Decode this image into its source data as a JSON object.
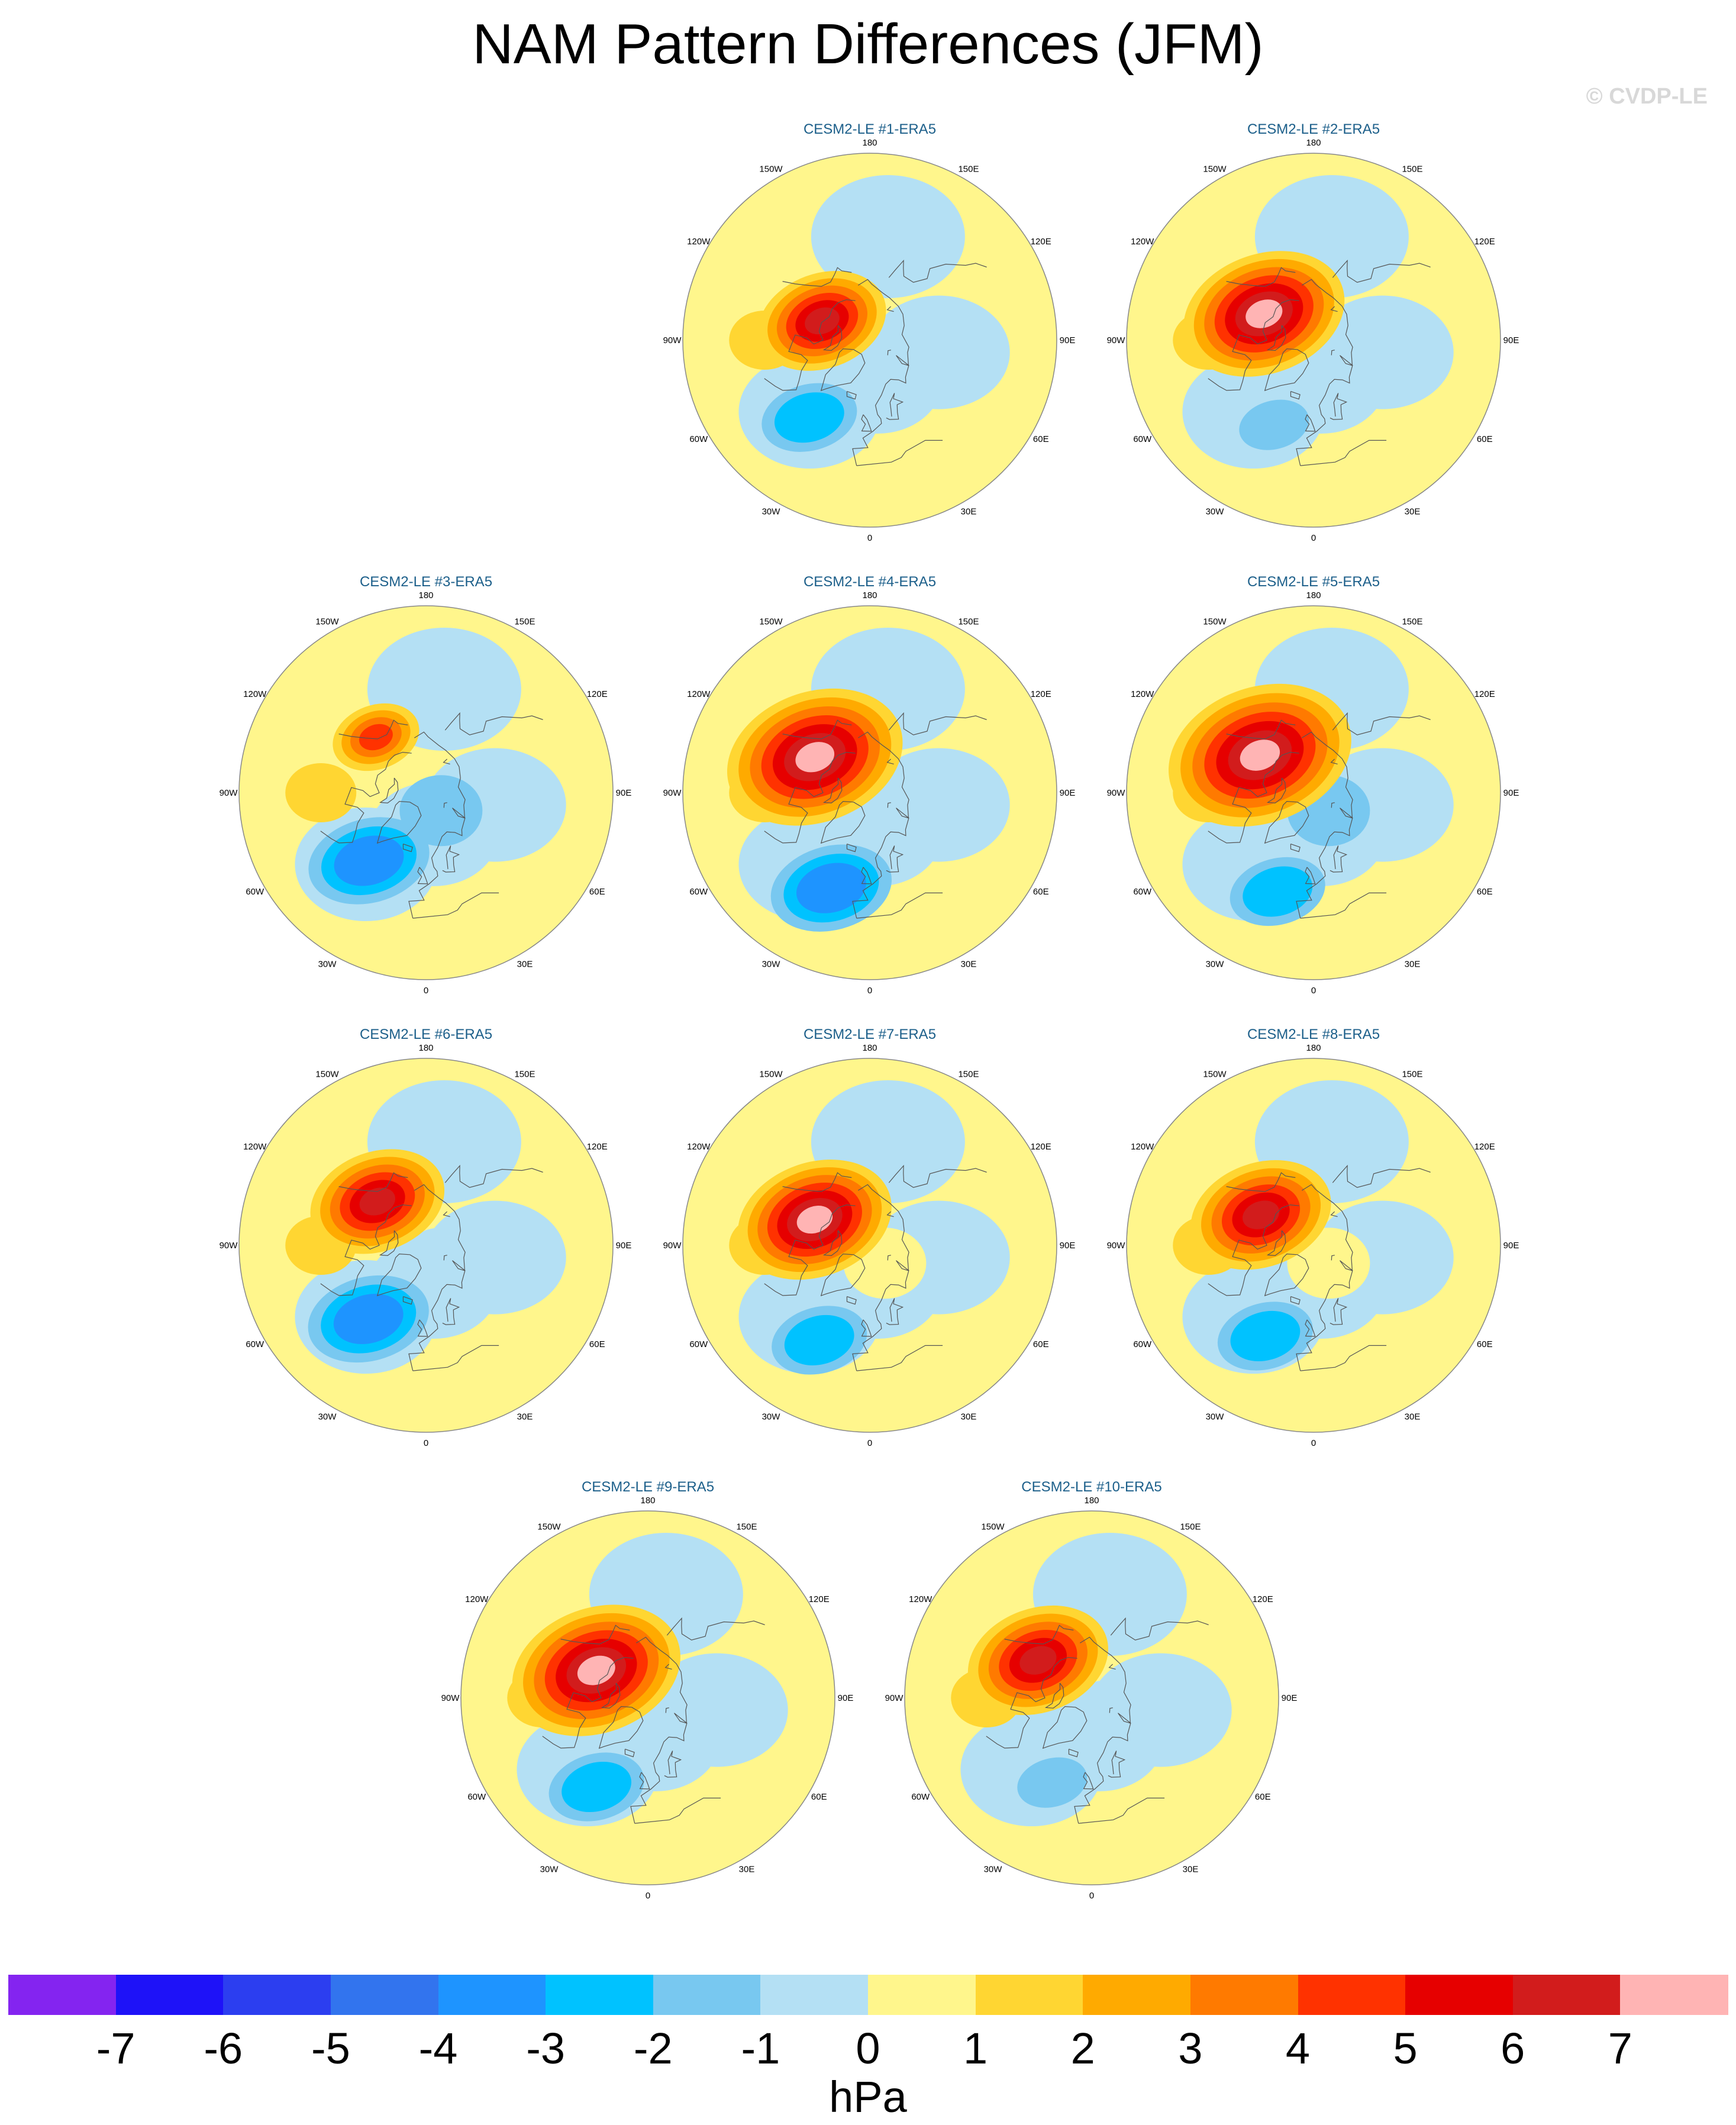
{
  "title": "NAM Pattern Differences (JFM)",
  "copyright": "© CVDP-LE",
  "colorbar": {
    "units": "hPa",
    "labels": [
      "-7",
      "-6",
      "-5",
      "-4",
      "-3",
      "-2",
      "-1",
      "0",
      "1",
      "2",
      "3",
      "4",
      "5",
      "6",
      "7"
    ],
    "colors": [
      "#8424f0",
      "#1e12f8",
      "#2c3ef0",
      "#3274ee",
      "#1e94ff",
      "#00c2ff",
      "#78c8f0",
      "#b4e0f4",
      "#fff68c",
      "#ffd632",
      "#ffaa00",
      "#ff7a00",
      "#ff3200",
      "#e60000",
      "#d21c1c",
      "#ffb4b4"
    ]
  },
  "longitude_labels": [
    "180",
    "150E",
    "120E",
    "90E",
    "60E",
    "30E",
    "0",
    "30W",
    "60W",
    "90W",
    "120W",
    "150W"
  ],
  "panels": [
    {
      "title": "CESM2-LE #1-ERA5",
      "peak_hpa": 6,
      "pac_lat": 68,
      "pac_lon": -112,
      "pac_r": 18,
      "atl_lon": -38,
      "atl_lat": 48,
      "atl_hpa": -2,
      "arctic_hpa": -1
    },
    {
      "title": "CESM2-LE #2-ERA5",
      "peak_hpa": 7,
      "pac_lat": 66,
      "pac_lon": -118,
      "pac_r": 20,
      "atl_lon": -25,
      "atl_lat": 50,
      "atl_hpa": -1,
      "arctic_hpa": -1
    },
    {
      "title": "CESM2-LE #3-ERA5",
      "peak_hpa": 4,
      "pac_lat": 58,
      "pac_lon": -138,
      "pac_r": 17,
      "atl_lon": -40,
      "atl_lat": 52,
      "atl_hpa": -3,
      "arctic_hpa": -2
    },
    {
      "title": "CESM2-LE #4-ERA5",
      "peak_hpa": 7,
      "pac_lat": 62,
      "pac_lon": -123,
      "pac_r": 22,
      "atl_lon": -22,
      "atl_lat": 46,
      "atl_hpa": -3,
      "arctic_hpa": -1
    },
    {
      "title": "CESM2-LE #5-ERA5",
      "peak_hpa": 7,
      "pac_lat": 62,
      "pac_lon": -125,
      "pac_r": 23,
      "atl_lon": -20,
      "atl_lat": 45,
      "atl_hpa": -2,
      "arctic_hpa": -2
    },
    {
      "title": "CESM2-LE #6-ERA5",
      "peak_hpa": 6,
      "pac_lat": 62,
      "pac_lon": -132,
      "pac_r": 19,
      "atl_lon": -38,
      "atl_lat": 50,
      "atl_hpa": -3,
      "arctic_hpa": -1
    },
    {
      "title": "CESM2-LE #7-ERA5",
      "peak_hpa": 7,
      "pac_lat": 64,
      "pac_lon": -115,
      "pac_r": 19,
      "atl_lon": -28,
      "atl_lat": 44,
      "atl_hpa": -2,
      "arctic_hpa": 1
    },
    {
      "title": "CESM2-LE #8-ERA5",
      "peak_hpa": 6,
      "pac_lat": 64,
      "pac_lon": -120,
      "pac_r": 20,
      "atl_lon": -28,
      "atl_lat": 46,
      "atl_hpa": -2,
      "arctic_hpa": 1
    },
    {
      "title": "CESM2-LE #9-ERA5",
      "peak_hpa": 7,
      "pac_lat": 65,
      "pac_lon": -118,
      "pac_r": 21,
      "atl_lon": -30,
      "atl_lat": 46,
      "atl_hpa": -2,
      "arctic_hpa": -1
    },
    {
      "title": "CESM2-LE #10-ERA5",
      "peak_hpa": 6,
      "pac_lat": 62,
      "pac_lon": -125,
      "pac_r": 20,
      "atl_lon": -25,
      "atl_lat": 50,
      "atl_hpa": -1,
      "arctic_hpa": -1
    }
  ]
}
